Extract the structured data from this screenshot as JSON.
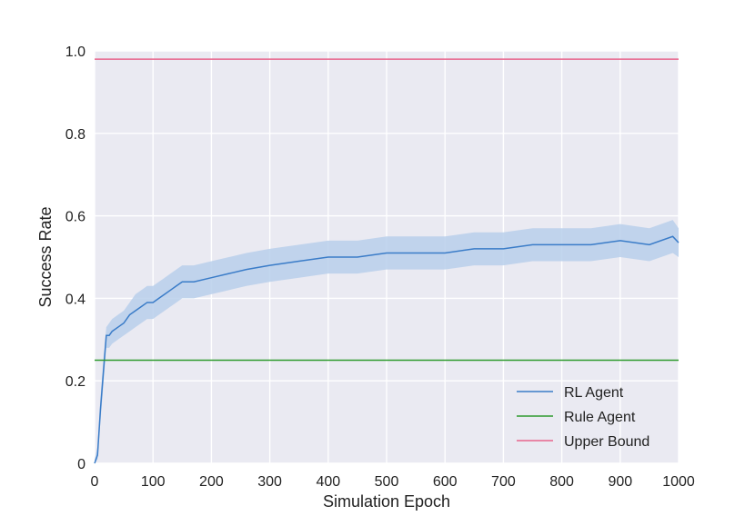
{
  "chart_data": {
    "type": "line",
    "title": "",
    "xlabel": "Simulation Epoch",
    "ylabel": "Success Rate",
    "xlim": [
      0,
      1000
    ],
    "ylim": [
      0,
      1.0
    ],
    "xticks": [
      0,
      100,
      200,
      300,
      400,
      500,
      600,
      700,
      800,
      900,
      1000
    ],
    "xtick_labels": [
      "0",
      "100",
      "200",
      "300",
      "400",
      "500",
      "600",
      "700",
      "800",
      "900",
      "1000"
    ],
    "yticks": [
      0,
      0.2,
      0.4,
      0.6,
      0.8,
      1.0
    ],
    "ytick_labels": [
      "0",
      "0.2",
      "0.4",
      "0.6",
      "0.8",
      "1.0"
    ],
    "grid": true,
    "legend_position": "bottom-right",
    "background_color": "#eaeaf2",
    "series": [
      {
        "name": "RL Agent",
        "color": "#3a7cc8",
        "band_color": "#b9cfeb",
        "x": [
          0,
          5,
          10,
          15,
          20,
          25,
          30,
          40,
          50,
          60,
          70,
          80,
          90,
          100,
          110,
          120,
          130,
          140,
          150,
          170,
          200,
          230,
          260,
          300,
          350,
          400,
          450,
          500,
          550,
          600,
          650,
          700,
          750,
          800,
          850,
          900,
          950,
          990,
          1000
        ],
        "y": [
          0,
          0.02,
          0.13,
          0.22,
          0.31,
          0.31,
          0.32,
          0.33,
          0.34,
          0.36,
          0.37,
          0.38,
          0.39,
          0.39,
          0.4,
          0.41,
          0.42,
          0.43,
          0.44,
          0.44,
          0.45,
          0.46,
          0.47,
          0.48,
          0.49,
          0.5,
          0.5,
          0.51,
          0.51,
          0.51,
          0.52,
          0.52,
          0.53,
          0.53,
          0.53,
          0.54,
          0.53,
          0.55,
          0.535
        ],
        "lower": [
          0,
          0.01,
          0.1,
          0.19,
          0.28,
          0.28,
          0.29,
          0.3,
          0.31,
          0.32,
          0.33,
          0.34,
          0.35,
          0.35,
          0.36,
          0.37,
          0.38,
          0.39,
          0.4,
          0.4,
          0.41,
          0.42,
          0.43,
          0.44,
          0.45,
          0.46,
          0.46,
          0.47,
          0.47,
          0.47,
          0.48,
          0.48,
          0.49,
          0.49,
          0.49,
          0.5,
          0.49,
          0.51,
          0.5
        ],
        "upper": [
          0.01,
          0.04,
          0.16,
          0.25,
          0.33,
          0.34,
          0.35,
          0.36,
          0.37,
          0.39,
          0.41,
          0.42,
          0.43,
          0.43,
          0.44,
          0.45,
          0.46,
          0.47,
          0.48,
          0.48,
          0.49,
          0.5,
          0.51,
          0.52,
          0.53,
          0.54,
          0.54,
          0.55,
          0.55,
          0.55,
          0.56,
          0.56,
          0.57,
          0.57,
          0.57,
          0.58,
          0.57,
          0.59,
          0.57
        ]
      },
      {
        "name": "Rule Agent",
        "color": "#2e9a2e",
        "x": [
          0,
          1000
        ],
        "y": [
          0.25,
          0.25
        ]
      },
      {
        "name": "Upper Bound",
        "color": "#e8648c",
        "x": [
          0,
          1000
        ],
        "y": [
          0.98,
          0.98
        ]
      }
    ]
  }
}
